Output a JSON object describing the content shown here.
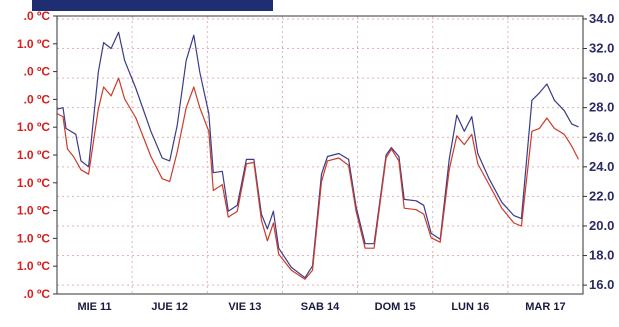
{
  "chart_data": {
    "type": "line",
    "title": "",
    "xlabel": "",
    "ylabel": "",
    "categories": [
      "MIE 11",
      "JUE 12",
      "VIE 13",
      "SAB 14",
      "DOM 15",
      "LUN 16",
      "MAR 17"
    ],
    "y_left": {
      "tick_labels": [
        ".0 ºC",
        "1.0 ºC",
        ".0 ºC",
        ".0 ºC",
        "1.0 ºC",
        "1.0 ºC",
        "1.0 ºC",
        "1.0 ºC",
        "1.0 ºC",
        "1.0 ºC",
        ".0 ºC"
      ],
      "color": "#d61f1f"
    },
    "y_right": {
      "ticks": [
        16.0,
        18.0,
        20.0,
        22.0,
        24.0,
        26.0,
        28.0,
        30.0,
        32.0,
        34.0
      ],
      "tick_labels": [
        "16.0",
        "18.0",
        "20.0",
        "22.0",
        "24.0",
        "26.0",
        "28.0",
        "30.0",
        "32.0",
        "34.0"
      ],
      "ylim": [
        15.4,
        34.2
      ],
      "color": "#2b2b66"
    },
    "x_range": [
      0,
      7
    ],
    "grid": true,
    "series": [
      {
        "color": "#3b3b8a",
        "points": [
          [
            0.0,
            27.9
          ],
          [
            0.08,
            28.0
          ],
          [
            0.12,
            26.6
          ],
          [
            0.25,
            26.2
          ],
          [
            0.32,
            24.4
          ],
          [
            0.42,
            24.0
          ],
          [
            0.55,
            30.4
          ],
          [
            0.62,
            32.4
          ],
          [
            0.72,
            32.0
          ],
          [
            0.82,
            33.1
          ],
          [
            0.9,
            31.2
          ],
          [
            1.05,
            29.3
          ],
          [
            1.25,
            26.4
          ],
          [
            1.4,
            24.6
          ],
          [
            1.5,
            24.4
          ],
          [
            1.6,
            26.8
          ],
          [
            1.72,
            31.2
          ],
          [
            1.82,
            32.9
          ],
          [
            1.9,
            30.4
          ],
          [
            2.02,
            27.6
          ],
          [
            2.08,
            23.6
          ],
          [
            2.2,
            23.7
          ],
          [
            2.28,
            21.0
          ],
          [
            2.4,
            21.4
          ],
          [
            2.52,
            24.5
          ],
          [
            2.62,
            24.5
          ],
          [
            2.72,
            20.8
          ],
          [
            2.8,
            19.8
          ],
          [
            2.88,
            21.0
          ],
          [
            2.95,
            18.5
          ],
          [
            3.12,
            17.2
          ],
          [
            3.3,
            16.5
          ],
          [
            3.4,
            17.3
          ],
          [
            3.52,
            23.5
          ],
          [
            3.6,
            24.7
          ],
          [
            3.75,
            24.9
          ],
          [
            3.88,
            24.5
          ],
          [
            3.98,
            21.3
          ],
          [
            4.1,
            18.8
          ],
          [
            4.22,
            18.8
          ],
          [
            4.38,
            24.8
          ],
          [
            4.45,
            25.3
          ],
          [
            4.55,
            24.7
          ],
          [
            4.62,
            21.8
          ],
          [
            4.78,
            21.7
          ],
          [
            4.88,
            21.4
          ],
          [
            4.98,
            19.5
          ],
          [
            5.1,
            19.1
          ],
          [
            5.22,
            24.5
          ],
          [
            5.32,
            27.5
          ],
          [
            5.42,
            26.4
          ],
          [
            5.52,
            27.4
          ],
          [
            5.6,
            24.9
          ],
          [
            5.75,
            23.2
          ],
          [
            5.92,
            21.6
          ],
          [
            6.08,
            20.7
          ],
          [
            6.18,
            20.5
          ],
          [
            6.32,
            28.5
          ],
          [
            6.42,
            29.0
          ],
          [
            6.52,
            29.6
          ],
          [
            6.62,
            28.5
          ],
          [
            6.75,
            27.8
          ],
          [
            6.85,
            26.9
          ],
          [
            6.94,
            26.7
          ]
        ]
      },
      {
        "color": "#cc3b2b",
        "points": [
          [
            0.0,
            27.6
          ],
          [
            0.08,
            27.4
          ],
          [
            0.14,
            25.2
          ],
          [
            0.22,
            24.7
          ],
          [
            0.32,
            23.8
          ],
          [
            0.42,
            23.5
          ],
          [
            0.55,
            27.9
          ],
          [
            0.62,
            29.4
          ],
          [
            0.72,
            28.8
          ],
          [
            0.82,
            30.0
          ],
          [
            0.9,
            28.6
          ],
          [
            1.05,
            27.3
          ],
          [
            1.25,
            24.7
          ],
          [
            1.4,
            23.2
          ],
          [
            1.5,
            23.0
          ],
          [
            1.6,
            25.0
          ],
          [
            1.72,
            28.0
          ],
          [
            1.82,
            29.4
          ],
          [
            1.9,
            28.0
          ],
          [
            2.02,
            26.4
          ],
          [
            2.08,
            22.4
          ],
          [
            2.2,
            22.8
          ],
          [
            2.28,
            20.6
          ],
          [
            2.4,
            21.0
          ],
          [
            2.52,
            24.2
          ],
          [
            2.62,
            24.3
          ],
          [
            2.72,
            20.4
          ],
          [
            2.8,
            19.0
          ],
          [
            2.88,
            20.2
          ],
          [
            2.95,
            18.1
          ],
          [
            3.12,
            17.0
          ],
          [
            3.3,
            16.4
          ],
          [
            3.4,
            17.0
          ],
          [
            3.52,
            23.0
          ],
          [
            3.6,
            24.4
          ],
          [
            3.75,
            24.6
          ],
          [
            3.88,
            24.1
          ],
          [
            3.98,
            21.0
          ],
          [
            4.1,
            18.5
          ],
          [
            4.22,
            18.5
          ],
          [
            4.38,
            24.6
          ],
          [
            4.45,
            25.2
          ],
          [
            4.55,
            24.4
          ],
          [
            4.62,
            21.2
          ],
          [
            4.78,
            21.1
          ],
          [
            4.88,
            20.8
          ],
          [
            4.98,
            19.2
          ],
          [
            5.1,
            18.9
          ],
          [
            5.22,
            23.8
          ],
          [
            5.32,
            26.1
          ],
          [
            5.42,
            25.5
          ],
          [
            5.52,
            26.2
          ],
          [
            5.6,
            24.2
          ],
          [
            5.75,
            22.8
          ],
          [
            5.92,
            21.2
          ],
          [
            6.08,
            20.2
          ],
          [
            6.18,
            20.0
          ],
          [
            6.32,
            26.4
          ],
          [
            6.42,
            26.6
          ],
          [
            6.52,
            27.3
          ],
          [
            6.62,
            26.6
          ],
          [
            6.75,
            26.2
          ],
          [
            6.85,
            25.4
          ],
          [
            6.94,
            24.5
          ]
        ]
      }
    ]
  }
}
